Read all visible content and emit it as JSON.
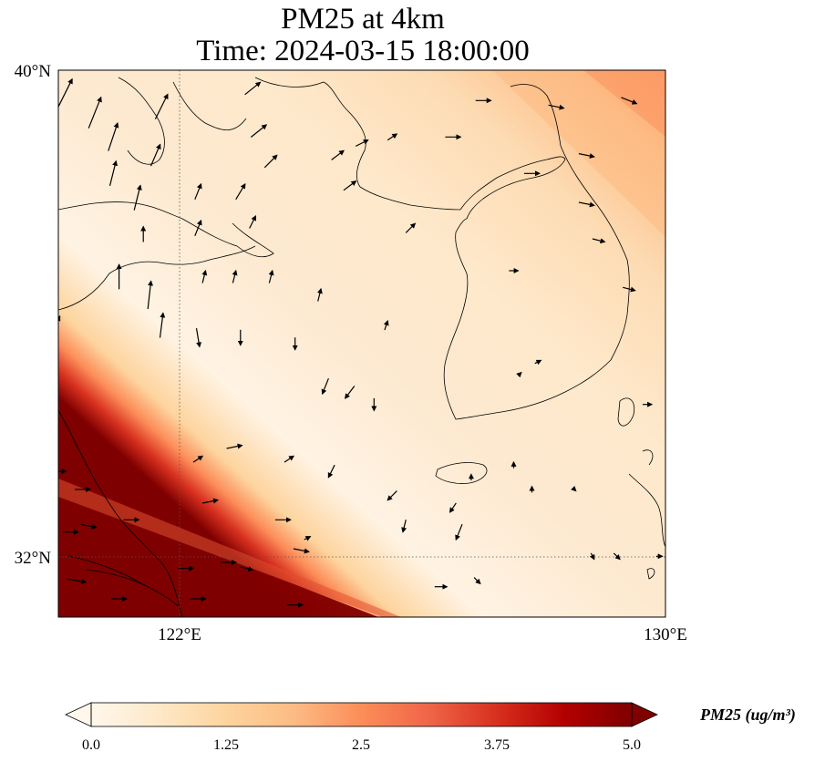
{
  "title": {
    "line1": "PM25 at 4km",
    "line2": "Time: 2024-03-15 18:00:00"
  },
  "axes": {
    "y_ticks": [
      {
        "label": "40°N",
        "lat": 40
      },
      {
        "label": "32°N",
        "lat": 32
      }
    ],
    "x_ticks": [
      {
        "label": "122°E",
        "lon": 122
      },
      {
        "label": "130°E",
        "lon": 130
      }
    ],
    "lon_range": [
      120,
      130
    ],
    "lat_range": [
      31,
      40
    ],
    "gridlines": "dotted"
  },
  "colorbar": {
    "title": "PM25 (ug/m³)",
    "colormap": "OrRd",
    "range": [
      0.0,
      5.0
    ],
    "extend": "both",
    "ticks": [
      "0.0",
      "1.25",
      "2.5",
      "3.75",
      "5.0"
    ],
    "colors": [
      "#fff7ec",
      "#fee8c8",
      "#fdd49e",
      "#fdbb84",
      "#fc8d59",
      "#ef6548",
      "#d7301f",
      "#b30000",
      "#7f0000"
    ]
  },
  "chart_data": {
    "type": "heatmap",
    "field": "PM25 near-surface concentration with wind vectors",
    "field_description": "Mostly 0.1–1.0 over Yellow Sea and Korea; higher (~1.5–2) toward NE corner; saturating >5.0 along the SW corner near Shanghai / Yangtze estuary",
    "wind_vectors": [
      {
        "lon": 120.1,
        "lat": 39.6,
        "u": 0.5,
        "v": 1.0
      },
      {
        "lon": 120.6,
        "lat": 39.3,
        "u": 0.4,
        "v": 1.0
      },
      {
        "lon": 120.9,
        "lat": 38.9,
        "u": 0.3,
        "v": 0.9
      },
      {
        "lon": 121.7,
        "lat": 39.4,
        "u": 0.4,
        "v": 0.8
      },
      {
        "lon": 121.6,
        "lat": 38.6,
        "u": 0.3,
        "v": 0.7
      },
      {
        "lon": 120.9,
        "lat": 38.3,
        "u": 0.2,
        "v": 0.8
      },
      {
        "lon": 121.3,
        "lat": 37.9,
        "u": 0.2,
        "v": 0.8
      },
      {
        "lon": 121.4,
        "lat": 37.3,
        "u": 0.0,
        "v": 0.5
      },
      {
        "lon": 121.0,
        "lat": 36.6,
        "u": 0.0,
        "v": 0.8
      },
      {
        "lon": 121.5,
        "lat": 36.3,
        "u": 0.1,
        "v": 0.9
      },
      {
        "lon": 121.7,
        "lat": 35.8,
        "u": 0.1,
        "v": 0.8
      },
      {
        "lon": 123.2,
        "lat": 39.7,
        "u": 0.5,
        "v": 0.4
      },
      {
        "lon": 123.3,
        "lat": 39.0,
        "u": 0.5,
        "v": 0.4
      },
      {
        "lon": 123.5,
        "lat": 38.5,
        "u": 0.4,
        "v": 0.4
      },
      {
        "lon": 123.0,
        "lat": 38.0,
        "u": 0.3,
        "v": 0.5
      },
      {
        "lon": 122.3,
        "lat": 38.0,
        "u": 0.2,
        "v": 0.5
      },
      {
        "lon": 123.2,
        "lat": 37.5,
        "u": 0.2,
        "v": 0.4
      },
      {
        "lon": 122.3,
        "lat": 37.4,
        "u": 0.2,
        "v": 0.5
      },
      {
        "lon": 122.4,
        "lat": 36.6,
        "u": 0.1,
        "v": 0.4
      },
      {
        "lon": 122.9,
        "lat": 36.6,
        "u": 0.1,
        "v": 0.4
      },
      {
        "lon": 123.5,
        "lat": 36.6,
        "u": 0.1,
        "v": 0.4
      },
      {
        "lon": 124.3,
        "lat": 36.3,
        "u": 0.1,
        "v": 0.4
      },
      {
        "lon": 122.3,
        "lat": 35.6,
        "u": 0.1,
        "v": -0.6
      },
      {
        "lon": 123.0,
        "lat": 35.6,
        "u": 0.0,
        "v": -0.5
      },
      {
        "lon": 123.9,
        "lat": 35.5,
        "u": 0.0,
        "v": -0.4
      },
      {
        "lon": 124.4,
        "lat": 34.8,
        "u": -0.2,
        "v": -0.5
      },
      {
        "lon": 124.8,
        "lat": 34.7,
        "u": -0.3,
        "v": -0.4
      },
      {
        "lon": 125.2,
        "lat": 34.5,
        "u": 0.0,
        "v": -0.4
      },
      {
        "lon": 125.4,
        "lat": 35.8,
        "u": 0.1,
        "v": 0.3
      },
      {
        "lon": 125.8,
        "lat": 37.4,
        "u": 0.3,
        "v": 0.3
      },
      {
        "lon": 124.8,
        "lat": 38.1,
        "u": 0.4,
        "v": 0.3
      },
      {
        "lon": 124.6,
        "lat": 38.6,
        "u": 0.4,
        "v": 0.3
      },
      {
        "lon": 125.0,
        "lat": 38.8,
        "u": 0.4,
        "v": 0.2
      },
      {
        "lon": 125.5,
        "lat": 38.9,
        "u": 0.3,
        "v": 0.2
      },
      {
        "lon": 126.5,
        "lat": 38.9,
        "u": 0.5,
        "v": 0.0
      },
      {
        "lon": 127.0,
        "lat": 39.5,
        "u": 0.5,
        "v": 0.0
      },
      {
        "lon": 128.2,
        "lat": 39.4,
        "u": 0.5,
        "v": -0.1
      },
      {
        "lon": 129.4,
        "lat": 39.5,
        "u": 0.5,
        "v": -0.2
      },
      {
        "lon": 128.7,
        "lat": 38.6,
        "u": 0.5,
        "v": -0.1
      },
      {
        "lon": 128.7,
        "lat": 37.8,
        "u": 0.5,
        "v": -0.1
      },
      {
        "lon": 128.9,
        "lat": 37.2,
        "u": 0.4,
        "v": -0.1
      },
      {
        "lon": 129.4,
        "lat": 36.4,
        "u": 0.4,
        "v": -0.1
      },
      {
        "lon": 127.8,
        "lat": 38.3,
        "u": 0.5,
        "v": 0.0
      },
      {
        "lon": 127.5,
        "lat": 36.7,
        "u": 0.3,
        "v": 0.0
      },
      {
        "lon": 127.9,
        "lat": 35.2,
        "u": 0.2,
        "v": 0.1
      },
      {
        "lon": 127.6,
        "lat": 35.0,
        "u": 0.1,
        "v": 0.1
      },
      {
        "lon": 127.5,
        "lat": 33.5,
        "u": 0.0,
        "v": 0.2
      },
      {
        "lon": 127.8,
        "lat": 33.1,
        "u": 0.0,
        "v": 0.2
      },
      {
        "lon": 128.5,
        "lat": 33.1,
        "u": 0.1,
        "v": -0.1
      },
      {
        "lon": 129.2,
        "lat": 32.0,
        "u": 0.2,
        "v": -0.2
      },
      {
        "lon": 128.8,
        "lat": 32.0,
        "u": 0.1,
        "v": -0.2
      },
      {
        "lon": 129.9,
        "lat": 32.0,
        "u": 0.2,
        "v": 0.0
      },
      {
        "lon": 129.7,
        "lat": 34.5,
        "u": 0.3,
        "v": 0.0
      },
      {
        "lon": 126.8,
        "lat": 33.3,
        "u": 0.0,
        "v": 0.2
      },
      {
        "lon": 126.6,
        "lat": 32.4,
        "u": -0.2,
        "v": -0.5
      },
      {
        "lon": 126.5,
        "lat": 32.8,
        "u": -0.2,
        "v": -0.3
      },
      {
        "lon": 126.9,
        "lat": 31.6,
        "u": 0.2,
        "v": -0.2
      },
      {
        "lon": 126.3,
        "lat": 31.5,
        "u": 0.4,
        "v": 0.0
      },
      {
        "lon": 125.5,
        "lat": 33.0,
        "u": -0.3,
        "v": -0.3
      },
      {
        "lon": 125.7,
        "lat": 32.5,
        "u": -0.1,
        "v": -0.4
      },
      {
        "lon": 124.5,
        "lat": 33.4,
        "u": -0.2,
        "v": -0.4
      },
      {
        "lon": 123.8,
        "lat": 33.6,
        "u": 0.3,
        "v": 0.2
      },
      {
        "lon": 122.9,
        "lat": 33.8,
        "u": 0.5,
        "v": 0.1
      },
      {
        "lon": 122.3,
        "lat": 33.6,
        "u": 0.3,
        "v": 0.2
      },
      {
        "lon": 122.5,
        "lat": 32.9,
        "u": 0.5,
        "v": 0.1
      },
      {
        "lon": 123.7,
        "lat": 32.6,
        "u": 0.5,
        "v": 0.0
      },
      {
        "lon": 124.0,
        "lat": 32.1,
        "u": 0.5,
        "v": -0.1
      },
      {
        "lon": 124.1,
        "lat": 32.3,
        "u": 0.2,
        "v": 0.1
      },
      {
        "lon": 120.0,
        "lat": 33.4,
        "u": 0.5,
        "v": 0.0
      },
      {
        "lon": 120.4,
        "lat": 33.1,
        "u": 0.5,
        "v": 0.0
      },
      {
        "lon": 120.5,
        "lat": 32.5,
        "u": 0.5,
        "v": -0.1
      },
      {
        "lon": 121.2,
        "lat": 32.6,
        "u": 0.5,
        "v": 0.0
      },
      {
        "lon": 120.2,
        "lat": 32.4,
        "u": 0.5,
        "v": 0.0
      },
      {
        "lon": 120.3,
        "lat": 31.6,
        "u": 0.6,
        "v": -0.1
      },
      {
        "lon": 121.0,
        "lat": 31.3,
        "u": 0.5,
        "v": 0.0
      },
      {
        "lon": 122.1,
        "lat": 31.8,
        "u": 0.5,
        "v": 0.0
      },
      {
        "lon": 122.8,
        "lat": 31.9,
        "u": 0.5,
        "v": 0.0
      },
      {
        "lon": 122.3,
        "lat": 31.3,
        "u": 0.5,
        "v": 0.0
      },
      {
        "lon": 123.1,
        "lat": 31.8,
        "u": 0.4,
        "v": -0.1
      },
      {
        "lon": 123.9,
        "lat": 31.2,
        "u": 0.5,
        "v": 0.0
      },
      {
        "lon": 120.0,
        "lat": 35.9,
        "u": 0.1,
        "v": 0.2
      }
    ]
  }
}
